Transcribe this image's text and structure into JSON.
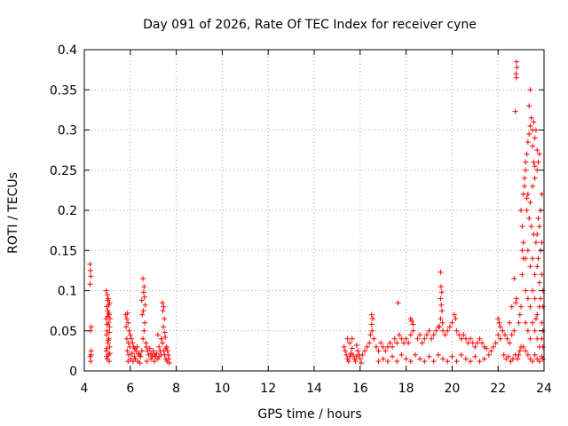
{
  "chart_data": {
    "type": "scatter",
    "title": "Day 091 of 2026, Rate Of TEC Index for receiver cyne",
    "xlabel": "GPS time / hours",
    "ylabel": "ROTI / TECUs",
    "xlim": [
      4,
      24
    ],
    "ylim": [
      0,
      0.4
    ],
    "x_ticks": [
      4,
      6,
      8,
      10,
      12,
      14,
      16,
      18,
      20,
      22,
      24
    ],
    "y_ticks": [
      0,
      0.05,
      0.1,
      0.15,
      0.2,
      0.25,
      0.3,
      0.35,
      0.4
    ],
    "x_tick_labels": [
      "4",
      "6",
      "8",
      "10",
      "12",
      "14",
      "16",
      "18",
      "20",
      "22",
      "24"
    ],
    "y_tick_labels": [
      "0",
      "0.05",
      "0.1",
      "0.15",
      "0.2",
      "0.25",
      "0.3",
      "0.35",
      "0.4"
    ],
    "grid": true,
    "marker": "+",
    "color": "#ff0000",
    "points": [
      [
        4.25,
        0.133
      ],
      [
        4.27,
        0.125
      ],
      [
        4.28,
        0.118
      ],
      [
        4.25,
        0.108
      ],
      [
        4.3,
        0.055
      ],
      [
        4.27,
        0.05
      ],
      [
        4.3,
        0.025
      ],
      [
        4.25,
        0.018
      ],
      [
        4.28,
        0.012
      ],
      [
        4.3,
        0.02
      ],
      [
        4.95,
        0.1
      ],
      [
        5.0,
        0.095
      ],
      [
        5.05,
        0.09
      ],
      [
        5.1,
        0.085
      ],
      [
        4.98,
        0.08
      ],
      [
        5.02,
        0.075
      ],
      [
        5.08,
        0.07
      ],
      [
        4.95,
        0.065
      ],
      [
        5.05,
        0.06
      ],
      [
        5.1,
        0.055
      ],
      [
        5.0,
        0.05
      ],
      [
        4.97,
        0.045
      ],
      [
        5.07,
        0.04
      ],
      [
        5.03,
        0.035
      ],
      [
        5.1,
        0.03
      ],
      [
        4.96,
        0.025
      ],
      [
        5.05,
        0.02
      ],
      [
        5.0,
        0.015
      ],
      [
        5.08,
        0.012
      ],
      [
        4.98,
        0.028
      ],
      [
        5.12,
        0.065
      ],
      [
        5.02,
        0.088
      ],
      [
        5.06,
        0.082
      ],
      [
        4.99,
        0.058
      ],
      [
        5.09,
        0.048
      ],
      [
        5.04,
        0.038
      ],
      [
        5.11,
        0.022
      ],
      [
        4.97,
        0.018
      ],
      [
        5.06,
        0.072
      ],
      [
        5.01,
        0.068
      ],
      [
        5.8,
        0.07
      ],
      [
        5.85,
        0.065
      ],
      [
        5.9,
        0.06
      ],
      [
        5.88,
        0.072
      ],
      [
        5.82,
        0.055
      ],
      [
        5.95,
        0.05
      ],
      [
        6.0,
        0.045
      ],
      [
        5.85,
        0.04
      ],
      [
        5.92,
        0.035
      ],
      [
        5.98,
        0.03
      ],
      [
        6.05,
        0.04
      ],
      [
        6.1,
        0.035
      ],
      [
        6.15,
        0.03
      ],
      [
        6.2,
        0.028
      ],
      [
        6.25,
        0.025
      ],
      [
        6.3,
        0.03
      ],
      [
        6.35,
        0.022
      ],
      [
        6.4,
        0.02
      ],
      [
        6.45,
        0.018
      ],
      [
        6.5,
        0.025
      ],
      [
        5.87,
        0.025
      ],
      [
        5.93,
        0.02
      ],
      [
        6.02,
        0.015
      ],
      [
        6.12,
        0.012
      ],
      [
        6.22,
        0.015
      ],
      [
        6.32,
        0.012
      ],
      [
        6.42,
        0.01
      ],
      [
        5.9,
        0.012
      ],
      [
        6.08,
        0.022
      ],
      [
        6.18,
        0.018
      ],
      [
        6.55,
        0.115
      ],
      [
        6.6,
        0.105
      ],
      [
        6.58,
        0.098
      ],
      [
        6.62,
        0.092
      ],
      [
        6.5,
        0.088
      ],
      [
        6.65,
        0.082
      ],
      [
        6.57,
        0.075
      ],
      [
        6.52,
        0.07
      ],
      [
        6.63,
        0.06
      ],
      [
        6.6,
        0.05
      ],
      [
        6.55,
        0.04
      ],
      [
        6.68,
        0.035
      ],
      [
        6.7,
        0.03
      ],
      [
        6.75,
        0.025
      ],
      [
        6.8,
        0.02
      ],
      [
        6.85,
        0.028
      ],
      [
        6.9,
        0.022
      ],
      [
        6.95,
        0.018
      ],
      [
        7.0,
        0.025
      ],
      [
        7.05,
        0.02
      ],
      [
        7.1,
        0.018
      ],
      [
        7.15,
        0.022
      ],
      [
        7.2,
        0.015
      ],
      [
        7.25,
        0.03
      ],
      [
        7.3,
        0.025
      ],
      [
        7.35,
        0.02
      ],
      [
        7.4,
        0.035
      ],
      [
        7.45,
        0.025
      ],
      [
        7.5,
        0.02
      ],
      [
        7.55,
        0.015
      ],
      [
        7.4,
        0.085
      ],
      [
        7.45,
        0.08
      ],
      [
        7.42,
        0.075
      ],
      [
        7.48,
        0.065
      ],
      [
        7.44,
        0.055
      ],
      [
        7.5,
        0.048
      ],
      [
        7.52,
        0.042
      ],
      [
        7.58,
        0.03
      ],
      [
        7.62,
        0.025
      ],
      [
        7.65,
        0.02
      ],
      [
        7.68,
        0.015
      ],
      [
        7.7,
        0.01
      ],
      [
        7.6,
        0.012
      ],
      [
        7.55,
        0.028
      ],
      [
        7.35,
        0.04
      ],
      [
        7.25,
        0.018
      ],
      [
        7.05,
        0.012
      ],
      [
        6.9,
        0.015
      ],
      [
        6.72,
        0.012
      ],
      [
        7.2,
        0.045
      ],
      [
        15.3,
        0.03
      ],
      [
        15.35,
        0.025
      ],
      [
        15.4,
        0.02
      ],
      [
        15.45,
        0.015
      ],
      [
        15.5,
        0.012
      ],
      [
        15.55,
        0.018
      ],
      [
        15.6,
        0.022
      ],
      [
        15.65,
        0.028
      ],
      [
        15.7,
        0.02
      ],
      [
        15.75,
        0.015
      ],
      [
        15.8,
        0.012
      ],
      [
        15.85,
        0.018
      ],
      [
        15.9,
        0.025
      ],
      [
        15.95,
        0.02
      ],
      [
        16.0,
        0.015
      ],
      [
        16.05,
        0.01
      ],
      [
        15.45,
        0.04
      ],
      [
        15.55,
        0.035
      ],
      [
        15.65,
        0.04
      ],
      [
        15.85,
        0.032
      ],
      [
        16.5,
        0.07
      ],
      [
        16.55,
        0.065
      ],
      [
        16.5,
        0.058
      ],
      [
        16.52,
        0.05
      ],
      [
        16.45,
        0.045
      ],
      [
        16.6,
        0.04
      ],
      [
        16.4,
        0.035
      ],
      [
        16.3,
        0.03
      ],
      [
        16.2,
        0.025
      ],
      [
        16.1,
        0.02
      ],
      [
        16.7,
        0.03
      ],
      [
        16.8,
        0.025
      ],
      [
        16.9,
        0.035
      ],
      [
        17.0,
        0.03
      ],
      [
        17.1,
        0.025
      ],
      [
        17.2,
        0.03
      ],
      [
        17.3,
        0.035
      ],
      [
        17.4,
        0.03
      ],
      [
        17.5,
        0.04
      ],
      [
        17.6,
        0.035
      ],
      [
        17.7,
        0.045
      ],
      [
        17.8,
        0.04
      ],
      [
        17.9,
        0.035
      ],
      [
        18.0,
        0.04
      ],
      [
        18.1,
        0.035
      ],
      [
        18.2,
        0.045
      ],
      [
        18.3,
        0.05
      ],
      [
        18.2,
        0.065
      ],
      [
        18.25,
        0.062
      ],
      [
        18.3,
        0.058
      ],
      [
        17.65,
        0.085
      ],
      [
        16.8,
        0.012
      ],
      [
        17.0,
        0.015
      ],
      [
        17.2,
        0.012
      ],
      [
        17.4,
        0.018
      ],
      [
        17.6,
        0.012
      ],
      [
        17.8,
        0.02
      ],
      [
        18.0,
        0.015
      ],
      [
        18.2,
        0.012
      ],
      [
        18.4,
        0.02
      ],
      [
        18.5,
        0.04
      ],
      [
        18.6,
        0.045
      ],
      [
        18.7,
        0.035
      ],
      [
        18.8,
        0.04
      ],
      [
        18.9,
        0.045
      ],
      [
        19.0,
        0.05
      ],
      [
        19.1,
        0.04
      ],
      [
        19.2,
        0.045
      ],
      [
        19.3,
        0.05
      ],
      [
        19.4,
        0.055
      ],
      [
        19.5,
        0.123
      ],
      [
        19.52,
        0.105
      ],
      [
        19.55,
        0.098
      ],
      [
        19.5,
        0.09
      ],
      [
        19.53,
        0.082
      ],
      [
        19.56,
        0.075
      ],
      [
        19.5,
        0.065
      ],
      [
        19.58,
        0.06
      ],
      [
        19.45,
        0.055
      ],
      [
        19.6,
        0.05
      ],
      [
        19.7,
        0.045
      ],
      [
        19.8,
        0.05
      ],
      [
        19.9,
        0.055
      ],
      [
        20.0,
        0.06
      ],
      [
        20.1,
        0.07
      ],
      [
        20.15,
        0.065
      ],
      [
        20.2,
        0.05
      ],
      [
        20.3,
        0.045
      ],
      [
        20.4,
        0.04
      ],
      [
        20.5,
        0.045
      ],
      [
        20.6,
        0.04
      ],
      [
        20.7,
        0.035
      ],
      [
        20.8,
        0.04
      ],
      [
        20.9,
        0.035
      ],
      [
        21.0,
        0.03
      ],
      [
        21.1,
        0.035
      ],
      [
        21.2,
        0.04
      ],
      [
        21.3,
        0.035
      ],
      [
        21.4,
        0.03
      ],
      [
        21.5,
        0.028
      ],
      [
        18.6,
        0.015
      ],
      [
        18.8,
        0.012
      ],
      [
        19.0,
        0.018
      ],
      [
        19.2,
        0.012
      ],
      [
        19.4,
        0.02
      ],
      [
        19.6,
        0.015
      ],
      [
        19.8,
        0.012
      ],
      [
        20.0,
        0.018
      ],
      [
        20.2,
        0.012
      ],
      [
        20.4,
        0.02
      ],
      [
        20.6,
        0.015
      ],
      [
        20.8,
        0.012
      ],
      [
        21.0,
        0.018
      ],
      [
        21.2,
        0.012
      ],
      [
        21.4,
        0.015
      ],
      [
        21.6,
        0.02
      ],
      [
        21.7,
        0.025
      ],
      [
        21.8,
        0.03
      ],
      [
        21.9,
        0.035
      ],
      [
        22.0,
        0.045
      ],
      [
        22.1,
        0.04
      ],
      [
        22.2,
        0.05
      ],
      [
        22.0,
        0.065
      ],
      [
        22.05,
        0.06
      ],
      [
        22.1,
        0.055
      ],
      [
        22.3,
        0.045
      ],
      [
        22.4,
        0.04
      ],
      [
        22.5,
        0.035
      ],
      [
        22.6,
        0.045
      ],
      [
        22.7,
        0.05
      ],
      [
        22.8,
        0.385
      ],
      [
        22.82,
        0.378
      ],
      [
        22.78,
        0.37
      ],
      [
        22.8,
        0.365
      ],
      [
        22.75,
        0.323
      ],
      [
        22.8,
        0.09
      ],
      [
        22.77,
        0.085
      ],
      [
        22.7,
        0.115
      ],
      [
        22.6,
        0.08
      ],
      [
        22.5,
        0.06
      ],
      [
        22.9,
        0.06
      ],
      [
        22.95,
        0.07
      ],
      [
        23.0,
        0.08
      ],
      [
        23.05,
        0.12
      ],
      [
        23.1,
        0.14
      ],
      [
        23.05,
        0.15
      ],
      [
        23.1,
        0.16
      ],
      [
        23.0,
        0.2
      ],
      [
        23.05,
        0.18
      ],
      [
        23.1,
        0.22
      ],
      [
        23.15,
        0.24
      ],
      [
        23.2,
        0.25
      ],
      [
        23.25,
        0.27
      ],
      [
        23.3,
        0.285
      ],
      [
        23.35,
        0.295
      ],
      [
        23.4,
        0.305
      ],
      [
        23.45,
        0.315
      ],
      [
        23.5,
        0.3
      ],
      [
        23.55,
        0.31
      ],
      [
        23.6,
        0.29
      ],
      [
        23.65,
        0.3
      ],
      [
        23.7,
        0.275
      ],
      [
        23.2,
        0.26
      ],
      [
        23.3,
        0.22
      ],
      [
        23.4,
        0.21
      ],
      [
        23.5,
        0.23
      ],
      [
        23.6,
        0.24
      ],
      [
        23.7,
        0.25
      ],
      [
        23.75,
        0.26
      ],
      [
        23.8,
        0.27
      ],
      [
        23.25,
        0.2
      ],
      [
        23.35,
        0.19
      ],
      [
        23.45,
        0.18
      ],
      [
        23.55,
        0.17
      ],
      [
        23.65,
        0.16
      ],
      [
        23.75,
        0.19
      ],
      [
        23.85,
        0.2
      ],
      [
        23.9,
        0.22
      ],
      [
        23.8,
        0.18
      ],
      [
        23.7,
        0.17
      ],
      [
        23.2,
        0.14
      ],
      [
        23.3,
        0.15
      ],
      [
        23.4,
        0.13
      ],
      [
        23.5,
        0.14
      ],
      [
        23.6,
        0.12
      ],
      [
        23.7,
        0.13
      ],
      [
        23.8,
        0.11
      ],
      [
        23.9,
        0.12
      ],
      [
        23.85,
        0.15
      ],
      [
        23.75,
        0.14
      ],
      [
        23.2,
        0.1
      ],
      [
        23.3,
        0.09
      ],
      [
        23.4,
        0.08
      ],
      [
        23.5,
        0.1
      ],
      [
        23.6,
        0.09
      ],
      [
        23.7,
        0.07
      ],
      [
        23.8,
        0.08
      ],
      [
        23.9,
        0.06
      ],
      [
        23.95,
        0.05
      ],
      [
        23.85,
        0.09
      ],
      [
        23.2,
        0.06
      ],
      [
        23.3,
        0.05
      ],
      [
        23.4,
        0.04
      ],
      [
        23.5,
        0.06
      ],
      [
        23.6,
        0.05
      ],
      [
        23.7,
        0.04
      ],
      [
        23.8,
        0.03
      ],
      [
        23.9,
        0.04
      ],
      [
        23.95,
        0.03
      ],
      [
        23.65,
        0.065
      ],
      [
        23.1,
        0.03
      ],
      [
        23.2,
        0.025
      ],
      [
        23.3,
        0.02
      ],
      [
        23.4,
        0.015
      ],
      [
        23.5,
        0.012
      ],
      [
        23.6,
        0.02
      ],
      [
        23.7,
        0.015
      ],
      [
        23.8,
        0.012
      ],
      [
        23.9,
        0.018
      ],
      [
        23.95,
        0.015
      ],
      [
        22.9,
        0.02
      ],
      [
        22.95,
        0.025
      ],
      [
        23.0,
        0.03
      ],
      [
        22.85,
        0.015
      ],
      [
        22.75,
        0.02
      ],
      [
        22.65,
        0.015
      ],
      [
        22.55,
        0.012
      ],
      [
        22.45,
        0.018
      ],
      [
        22.35,
        0.015
      ],
      [
        22.25,
        0.02
      ],
      [
        23.4,
        0.35
      ],
      [
        23.35,
        0.33
      ],
      [
        23.5,
        0.28
      ],
      [
        23.55,
        0.26
      ],
      [
        23.6,
        0.255
      ],
      [
        23.15,
        0.23
      ],
      [
        23.25,
        0.215
      ],
      [
        23.9,
        0.16
      ],
      [
        23.95,
        0.1
      ],
      [
        23.95,
        0.08
      ]
    ]
  }
}
